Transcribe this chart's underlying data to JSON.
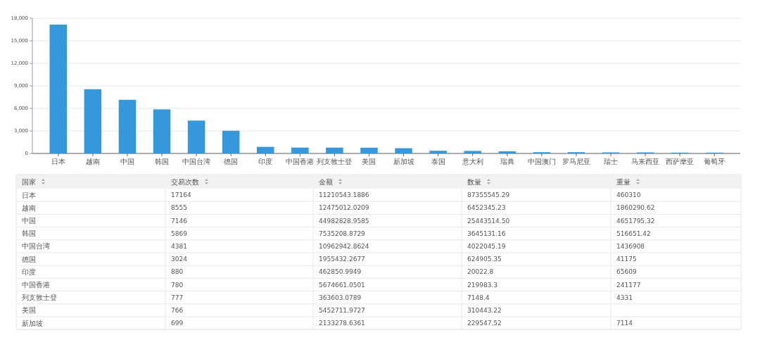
{
  "chart_data": [
    {
      "type": "bar",
      "categories": [
        "日本",
        "越南",
        "中国",
        "韩国",
        "中国台湾",
        "德国",
        "印度",
        "中国香港",
        "列支敦士登",
        "美国",
        "新加坡",
        "泰国",
        "意大利",
        "瑞典",
        "中国澳门",
        "罗马尼亚",
        "瑞士",
        "马来西亚",
        "西萨摩亚",
        "葡萄牙"
      ],
      "values": [
        17164,
        8555,
        7146,
        5869,
        4381,
        3024,
        880,
        780,
        777,
        766,
        699,
        360,
        340,
        280,
        170,
        170,
        140,
        140,
        110,
        110
      ],
      "color": "#3498db",
      "ylim": [
        0,
        18000
      ],
      "yticks": [
        {
          "value": 0,
          "label": "0"
        },
        {
          "value": 3000,
          "label": "3,000"
        },
        {
          "value": 6000,
          "label": "6,000"
        },
        {
          "value": 9000,
          "label": "9,000"
        },
        {
          "value": 12000,
          "label": "12,000"
        },
        {
          "value": 15000,
          "label": "15,000"
        },
        {
          "value": 18000,
          "label": "18,000"
        }
      ],
      "grid": "y"
    },
    {
      "type": "other",
      "categories": [
        "国家",
        "交易次数",
        "金额",
        "数量",
        "重量"
      ],
      "y_categories": [
        "日本",
        "越南",
        "中国",
        "韩国",
        "中国台湾",
        "德国",
        "印度",
        "中国香港",
        "列支敦士登",
        "美国",
        "新加坡"
      ],
      "cell_labels": [
        [
          "17164",
          "11210543.1886",
          "87355545.29",
          "460310"
        ],
        [
          "8555",
          "12475012.0209",
          "6452345.23",
          "1860290.62"
        ],
        [
          "7146",
          "44982828.9585",
          "25443514.50",
          "4651795.32"
        ],
        [
          "5869",
          "7535208.8729",
          "3645131.16",
          "516651.42"
        ],
        [
          "4381",
          "10962942.8624",
          "4022045.19",
          "1436908"
        ],
        [
          "3024",
          "1955432.2677",
          "624905.35",
          "41175"
        ],
        [
          "880",
          "462850.9949",
          "20022.8",
          "65609"
        ],
        [
          "780",
          "5674661.0501",
          "219983.3",
          "241177"
        ],
        [
          "777",
          "363603.0789",
          "7148.4",
          "4331"
        ],
        [
          "766",
          "5452711.9727",
          "310443.22",
          null
        ],
        [
          "699",
          "2133278.6361",
          "229547.52",
          "7114"
        ]
      ]
    }
  ]
}
